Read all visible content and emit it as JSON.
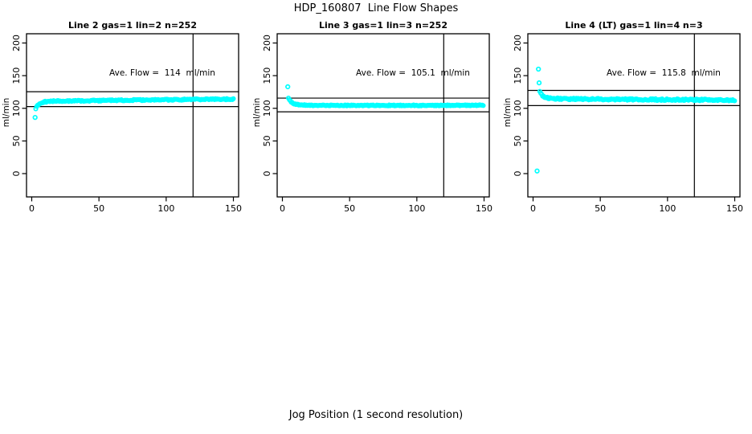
{
  "title": "HDP_160807  Line Flow Shapes",
  "xlabel": "Jog Position (1 second resolution)",
  "accent_color": "#00FFFF",
  "chart_data": [
    {
      "type": "scatter",
      "title": "Line 2 gas=1 lin=2 n=252",
      "n": 252,
      "annotation": "Ave. Flow =  114  ml/min",
      "ave_flow": 114,
      "ylabel": "ml/min",
      "xlim": [
        0,
        150
      ],
      "ylim": [
        0,
        200
      ],
      "xticks": [
        0,
        50,
        100,
        150
      ],
      "yticks": [
        0,
        50,
        100,
        150,
        200
      ],
      "ref_lines_h": [
        125.4,
        102.6
      ],
      "ref_line_v": 120,
      "point_color": "#00FFFF",
      "grid": false,
      "legend": null,
      "outliers": [
        [
          2.5,
          86
        ]
      ],
      "ribbon": {
        "x_start": 3,
        "x_end": 150,
        "step": 0.7,
        "jitter": 0.9,
        "keypoints": [
          [
            3,
            99
          ],
          [
            3.5,
            102
          ],
          [
            4,
            104
          ],
          [
            5,
            106
          ],
          [
            6,
            107.5
          ],
          [
            8,
            109
          ],
          [
            10,
            110
          ],
          [
            14,
            110.8
          ],
          [
            20,
            111.2
          ],
          [
            40,
            111.5
          ],
          [
            70,
            112.5
          ],
          [
            100,
            113
          ],
          [
            130,
            113.8
          ],
          [
            150,
            114
          ]
        ]
      }
    },
    {
      "type": "scatter",
      "title": "Line 3 gas=1 lin=3 n=252",
      "n": 252,
      "annotation": "Ave. Flow =  105.1  ml/min",
      "ave_flow": 105.1,
      "ylabel": "ml/min",
      "xlim": [
        0,
        150
      ],
      "ylim": [
        0,
        200
      ],
      "xticks": [
        0,
        50,
        100,
        150
      ],
      "yticks": [
        0,
        50,
        100,
        150,
        200
      ],
      "ref_lines_h": [
        115.6,
        94.6
      ],
      "ref_line_v": 120,
      "point_color": "#00FFFF",
      "grid": false,
      "legend": null,
      "outliers": [
        [
          4,
          133
        ]
      ],
      "ribbon": {
        "x_start": 4.5,
        "x_end": 150,
        "step": 0.7,
        "jitter": 0.7,
        "keypoints": [
          [
            4.5,
            116
          ],
          [
            5,
            113.5
          ],
          [
            6,
            111
          ],
          [
            7,
            109
          ],
          [
            8,
            107.5
          ],
          [
            10,
            106
          ],
          [
            13,
            105.2
          ],
          [
            18,
            104.7
          ],
          [
            30,
            104.4
          ],
          [
            80,
            104.4
          ],
          [
            150,
            104.6
          ]
        ]
      }
    },
    {
      "type": "scatter",
      "title": "Line 4 (LT) gas=1 lin=4 n=3",
      "n": 3,
      "annotation": "Ave. Flow =  115.8  ml/min",
      "ave_flow": 115.8,
      "ylabel": "ml/min",
      "xlim": [
        0,
        150
      ],
      "ylim": [
        0,
        200
      ],
      "xticks": [
        0,
        50,
        100,
        150
      ],
      "yticks": [
        0,
        50,
        100,
        150,
        200
      ],
      "ref_lines_h": [
        127.4,
        104.2
      ],
      "ref_line_v": 120,
      "point_color": "#00FFFF",
      "grid": false,
      "legend": null,
      "outliers": [
        [
          4,
          160
        ],
        [
          4.5,
          139
        ],
        [
          3,
          4
        ]
      ],
      "ribbon": {
        "x_start": 5,
        "x_end": 150,
        "step": 0.7,
        "jitter": 1.3,
        "keypoints": [
          [
            5,
            126
          ],
          [
            6,
            121.5
          ],
          [
            7,
            119
          ],
          [
            8,
            117.5
          ],
          [
            10,
            116.2
          ],
          [
            13,
            115.2
          ],
          [
            20,
            114.5
          ],
          [
            40,
            114
          ],
          [
            80,
            113.5
          ],
          [
            120,
            113
          ],
          [
            150,
            112.2
          ]
        ]
      }
    }
  ]
}
